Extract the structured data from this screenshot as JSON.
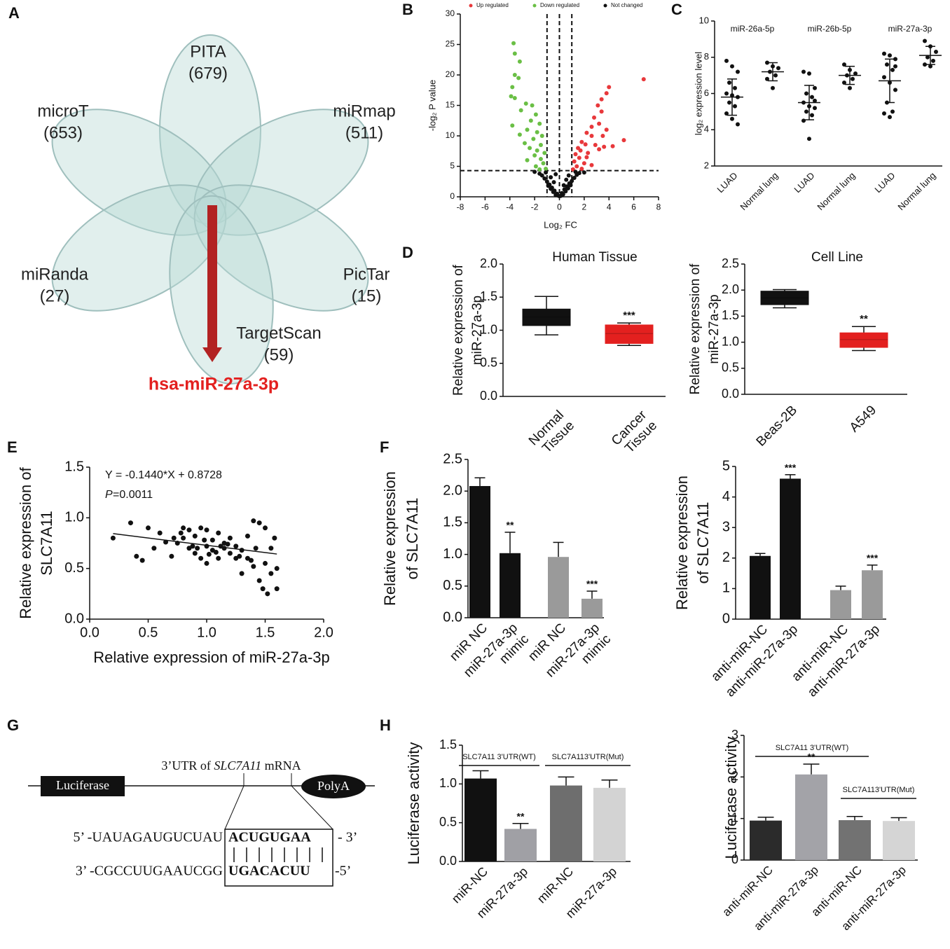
{
  "panels": [
    "A",
    "B",
    "C",
    "D",
    "E",
    "F",
    "G",
    "H"
  ],
  "venn": {
    "sets": [
      {
        "name": "PITA",
        "count": "(679)"
      },
      {
        "name": "microT",
        "count": "(653)"
      },
      {
        "name": "miRmap",
        "count": "(511)"
      },
      {
        "name": "miRanda",
        "count": "(27)"
      },
      {
        "name": "PicTar",
        "count": "(15)"
      },
      {
        "name": "TargetScan",
        "count": "(59)"
      }
    ],
    "result": "hsa-miR-27a-3p"
  },
  "sequence": {
    "gene_box": "Luciferase",
    "polya": "PolyA",
    "utr_prefix": "3’UTR of ",
    "utr_gene": "SLC7A11",
    "utr_suffix": " mRNA",
    "top_left": "5’ -UAUAGAUGUCUAU",
    "top_site": "ACUGUGAA",
    "top_right": "- 3’",
    "bottom_left": "3’ -CGCCUUGAAUCGG",
    "bottom_site": "UGACACUU",
    "bottom_right": "-5’"
  },
  "chart_data": [
    {
      "type": "scatter",
      "x_label": "Log₂ FC",
      "y_label": "-log₂ P value",
      "xlim": [
        -8,
        8
      ],
      "ylim": [
        0,
        30
      ],
      "xticks": [
        -8,
        -6,
        -4,
        -2,
        0,
        2,
        4,
        6,
        8
      ],
      "yticks": [
        0,
        5,
        10,
        15,
        20,
        25,
        30
      ],
      "vlines": [
        -1,
        0,
        1
      ],
      "hline": 4.3,
      "series": [
        {
          "name": "Up regulated",
          "color": "#e8383b",
          "x": [
            6.8,
            4,
            3.8,
            3.4,
            3.1,
            3.4,
            2.8,
            3.2,
            2.6,
            3.8,
            2.2,
            2.6,
            3.5,
            1.8,
            2.1,
            1.5,
            2.9,
            5.2,
            4.3,
            1.3,
            1.7,
            2.3,
            3.2,
            1.6,
            1.2,
            2,
            1.4,
            2.6,
            1.8,
            1.1,
            2.2,
            3.6
          ],
          "y": [
            19.3,
            18,
            17,
            16,
            15,
            14,
            13,
            12,
            11.5,
            11,
            10.5,
            10,
            10,
            9,
            8.6,
            8,
            8.5,
            9.3,
            8.3,
            7,
            7.6,
            7.2,
            7.8,
            6.4,
            5.8,
            5.5,
            5,
            5.2,
            4.6,
            4.5,
            6.5,
            8.2
          ]
        },
        {
          "name": "Down regulated",
          "color": "#6abf45",
          "x": [
            -3.7,
            -3.6,
            -3.2,
            -3.6,
            -3.3,
            -3.8,
            -3.9,
            -3.6,
            -2.7,
            -2.2,
            -3.1,
            -1.9,
            -2.3,
            -1.6,
            -3.8,
            -2.6,
            -1.8,
            -3.2,
            -1.4,
            -2.1,
            -2.8,
            -1.5,
            -2.4,
            -1.8,
            -1.2,
            -2,
            -1.5,
            -2.6,
            -1.3,
            -1.9,
            -1.1,
            -1.6
          ],
          "y": [
            25.2,
            23.5,
            22.2,
            20,
            19.5,
            18,
            16.5,
            16.2,
            15.3,
            15,
            14.2,
            13.5,
            12.5,
            12,
            11.7,
            11,
            10.6,
            10.2,
            10,
            9.5,
            8.8,
            8.5,
            8,
            7.6,
            7.2,
            6.8,
            6.2,
            6,
            5.5,
            5,
            4.6,
            4.5
          ]
        },
        {
          "name": "Not changed",
          "color": "#111111",
          "x": [
            0,
            -0.2,
            0.2,
            -0.4,
            0.4,
            -0.6,
            0.6,
            -0.8,
            0.8,
            -1,
            1,
            -1.2,
            1.2,
            -0.3,
            0.3,
            -0.5,
            0.5,
            -0.7,
            0.7,
            -0.9,
            0.9,
            -1.4,
            1.4,
            -1.1,
            1.3,
            -0.1,
            0.1,
            -1.6,
            1.6,
            -0.45,
            0.55,
            -0.7,
            0.75,
            -2,
            2,
            -0.3,
            0.35
          ],
          "y": [
            0.1,
            0.5,
            0.6,
            1,
            1.2,
            1.5,
            1.7,
            2,
            2.2,
            2.5,
            2.6,
            3,
            3.1,
            0.3,
            0.4,
            0.8,
            0.9,
            1.3,
            1.4,
            1.8,
            1.9,
            3.5,
            3.6,
            4,
            4.1,
            0.2,
            0.15,
            3.8,
            3.9,
            2.4,
            2.8,
            3.2,
            3.5,
            4.1,
            4,
            3.7,
            1.9
          ]
        }
      ]
    },
    {
      "type": "strip",
      "y_label": "log₂ expression level",
      "ylim": [
        2,
        10
      ],
      "yticks": [
        2,
        4,
        6,
        8,
        10
      ],
      "groups": [
        "miR-26a-5p",
        "miR-26b-5p",
        "miR-27a-3p"
      ],
      "categories": [
        "LUAD",
        "Normal lung",
        "LUAD",
        "Normal lung",
        "LUAD",
        "Normal lung"
      ],
      "values": [
        5.8,
        7.2,
        5.5,
        7.0,
        6.7,
        8.1
      ],
      "errors": [
        1.0,
        0.5,
        0.95,
        0.5,
        1.2,
        0.5
      ],
      "points": [
        [
          7.8,
          7.5,
          7.2,
          6.6,
          6.3,
          6.0,
          5.9,
          5.8,
          5.5,
          5.3,
          4.9,
          4.6,
          4.3
        ],
        [
          7.7,
          7.5,
          7.4,
          7.2,
          7.0,
          6.8,
          6.3
        ],
        [
          7.2,
          7.1,
          6.3,
          6.0,
          5.8,
          5.5,
          5.3,
          5.2,
          5.0,
          4.8,
          4.5,
          3.5,
          5.6
        ],
        [
          7.6,
          7.3,
          7.1,
          7.0,
          6.8,
          6.6,
          6.3
        ],
        [
          8.2,
          8.1,
          7.9,
          7.6,
          7.3,
          6.9,
          6.6,
          6.2,
          5.5,
          5.0,
          4.9,
          4.7,
          7.5
        ],
        [
          8.9,
          8.6,
          8.3,
          8.0,
          7.8,
          7.6,
          7.5
        ]
      ]
    },
    {
      "type": "box",
      "title": "Human Tissue",
      "y_label": [
        "Relative expression of",
        "miR-27a-3p"
      ],
      "ylim": [
        0,
        2
      ],
      "yticks": [
        {
          "value": 0,
          "label": "0.0"
        },
        0.5,
        {
          "value": 1,
          "label": "1.0"
        },
        1.5,
        {
          "value": 2,
          "label": "2.0"
        }
      ],
      "categories": [
        [
          "Normal",
          "Tissue"
        ],
        [
          "Cancer",
          "Tissue"
        ]
      ],
      "colors": [
        "#111111",
        "#e3201f"
      ],
      "significance": [
        null,
        "***"
      ],
      "boxes": [
        {
          "min": 0.93,
          "q1": 1.07,
          "median": 1.2,
          "q3": 1.32,
          "max": 1.51
        },
        {
          "min": 0.77,
          "q1": 0.8,
          "median": 0.95,
          "q3": 1.08,
          "max": 1.11
        }
      ]
    },
    {
      "type": "box",
      "title": "Cell Line",
      "y_label": [
        "Relative expression of",
        "miR-27a-3p"
      ],
      "ylim": [
        0,
        2.5
      ],
      "yticks": [
        {
          "value": 0,
          "label": "0.0"
        },
        0.5,
        {
          "value": 1,
          "label": "1.0"
        },
        1.5,
        {
          "value": 2,
          "label": "2.0"
        },
        2.5
      ],
      "categories": [
        "Beas-2B",
        "A549"
      ],
      "colors": [
        "#111111",
        "#e3201f"
      ],
      "significance": [
        null,
        "**"
      ],
      "boxes": [
        {
          "min": 1.66,
          "q1": 1.72,
          "median": 1.85,
          "q3": 1.98,
          "max": 2.01
        },
        {
          "min": 0.84,
          "q1": 0.9,
          "median": 1.05,
          "q3": 1.18,
          "max": 1.3
        }
      ]
    },
    {
      "type": "scatter",
      "x_label": "Relative expression of miR-27a-3p",
      "y_label": [
        "Relative expression of",
        "SLC7A11"
      ],
      "xlim": [
        0,
        2
      ],
      "ylim": [
        0,
        1.5
      ],
      "xticks": [
        {
          "value": 0,
          "label": "0.0"
        },
        0.5,
        {
          "value": 1,
          "label": "1.0"
        },
        1.5,
        {
          "value": 2,
          "label": "2.0"
        }
      ],
      "yticks": [
        {
          "value": 0,
          "label": "0.0"
        },
        0.5,
        {
          "value": 1,
          "label": "1.0"
        },
        1.5
      ],
      "equation": "Y = -0.1440*X + 0.8728",
      "p_symbol": "P",
      "p_value": "=0.0011",
      "fit": {
        "slope": -0.144,
        "intercept": 0.8728,
        "x": [
          0.2,
          1.6
        ]
      },
      "color": "#111111",
      "x": [
        0.2,
        0.35,
        0.4,
        0.45,
        0.5,
        0.55,
        0.6,
        0.7,
        0.75,
        0.8,
        0.8,
        0.85,
        0.85,
        0.9,
        0.9,
        0.95,
        0.95,
        1.0,
        1.0,
        1.0,
        1.05,
        1.05,
        1.1,
        1.1,
        1.15,
        1.15,
        1.2,
        1.2,
        1.25,
        1.25,
        1.3,
        1.3,
        1.35,
        1.35,
        1.4,
        1.4,
        1.42,
        1.45,
        1.45,
        1.48,
        1.5,
        1.5,
        1.52,
        1.55,
        1.55,
        1.58,
        1.6,
        1.6,
        0.78,
        0.88,
        0.98,
        1.08,
        1.18,
        0.72,
        0.65,
        1.28,
        1.38,
        0.92,
        1.02,
        1.12
      ],
      "y": [
        0.8,
        0.95,
        0.62,
        0.58,
        0.9,
        0.7,
        0.85,
        0.62,
        0.75,
        0.9,
        0.8,
        0.7,
        0.88,
        0.65,
        0.82,
        0.9,
        0.6,
        0.88,
        0.72,
        0.55,
        0.78,
        0.68,
        0.85,
        0.6,
        0.75,
        0.7,
        0.65,
        0.8,
        0.72,
        0.6,
        0.45,
        0.68,
        0.82,
        0.6,
        0.97,
        0.52,
        0.7,
        0.95,
        0.38,
        0.3,
        0.9,
        0.55,
        0.25,
        0.7,
        0.45,
        0.8,
        0.5,
        0.3,
        0.85,
        0.72,
        0.78,
        0.66,
        0.74,
        0.8,
        0.76,
        0.62,
        0.58,
        0.7,
        0.64,
        0.72
      ]
    },
    {
      "type": "bar",
      "y_label": [
        "Relative expression",
        "of SLC7A11"
      ],
      "ylim": [
        0,
        2.5
      ],
      "yticks": [
        {
          "value": 0,
          "label": "0.0"
        },
        0.5,
        {
          "value": 1,
          "label": "1.0"
        },
        1.5,
        {
          "value": 2,
          "label": "2.0"
        },
        2.5
      ],
      "categories": [
        "miR NC",
        [
          "miR-27a-3p",
          "mimic"
        ],
        "miR NC",
        [
          "miR-27a-3p",
          "mimic"
        ]
      ],
      "values": [
        2.08,
        1.02,
        0.96,
        0.3
      ],
      "errors": [
        0.13,
        0.33,
        0.23,
        0.12
      ],
      "colors": [
        "#111111",
        "#111111",
        "#9a9a9a",
        "#9a9a9a"
      ],
      "significance": [
        null,
        "**",
        null,
        "***"
      ]
    },
    {
      "type": "bar",
      "y_label": [
        "Relative expression",
        "of SLC7A11"
      ],
      "ylim": [
        0,
        5
      ],
      "yticks": [
        0,
        1,
        2,
        3,
        4,
        5
      ],
      "categories": [
        "anti-miR-NC",
        "anti-miR-27a-3p",
        "anti-miR-NC",
        "anti-miR-27a-3p"
      ],
      "values": [
        2.07,
        4.6,
        0.95,
        1.6
      ],
      "errors": [
        0.08,
        0.13,
        0.13,
        0.17
      ],
      "colors": [
        "#111111",
        "#111111",
        "#9a9a9a",
        "#9a9a9a"
      ],
      "significance": [
        null,
        "***",
        null,
        "***"
      ]
    },
    {
      "type": "bar",
      "y_label": "Luciferase activity",
      "ylim": [
        0,
        1.5
      ],
      "yticks": [
        {
          "value": 0,
          "label": "0.0"
        },
        0.5,
        {
          "value": 1,
          "label": "1.0"
        },
        1.5
      ],
      "categories": [
        "miR-NC",
        "miR-27a-3p",
        "miR-NC",
        "miR-27a-3p"
      ],
      "values": [
        1.07,
        0.42,
        0.98,
        0.95
      ],
      "errors": [
        0.1,
        0.07,
        0.11,
        0.1
      ],
      "colors": [
        "#111111",
        "#a0a0a5",
        "#6e6e6e",
        "#d3d3d3"
      ],
      "significance": [
        null,
        "**",
        null,
        null
      ],
      "brackets": [
        "SLC7A11 3'UTR(WT)",
        "SLC7A113'UTR(Mut)"
      ]
    },
    {
      "type": "bar",
      "y_label": "Luciferase activity",
      "ylim": [
        0,
        3
      ],
      "yticks": [
        0,
        1,
        2,
        3
      ],
      "categories": [
        "anti-miR-NC",
        "anti-miR-27a-3p",
        "anti-miR-NC",
        "anti-miR-27a-3p"
      ],
      "values": [
        0.95,
        2.06,
        0.96,
        0.94
      ],
      "errors": [
        0.08,
        0.25,
        0.09,
        0.08
      ],
      "colors": [
        "#2b2b2b",
        "#a3a3a8",
        "#727272",
        "#d5d5d5"
      ],
      "significance": [
        null,
        "**",
        null,
        null
      ],
      "brackets": [
        "SLC7A11 3'UTR(WT)",
        "SLC7A113'UTR(Mut)"
      ]
    }
  ]
}
